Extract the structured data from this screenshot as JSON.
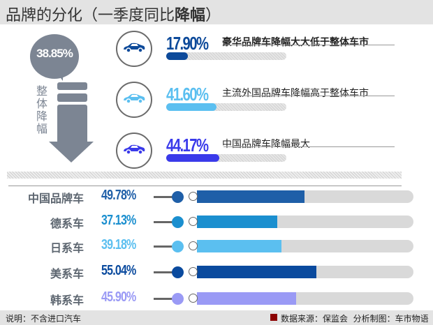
{
  "header": {
    "title": "品牌的分化（一季度同比",
    "title_bold": "降幅",
    "title_end": "）"
  },
  "overall": {
    "value": "38.85%",
    "label": "整体降幅"
  },
  "chart_data": [
    {
      "type": "bar",
      "orientation": "horizontal",
      "xlim": [
        0,
        100
      ],
      "categories": [
        "豪华品牌车降幅大大低于整体车市",
        "主流外国品牌车降幅高于整体车市",
        "中国品牌车降幅最大"
      ],
      "values": [
        17.9,
        41.6,
        44.17
      ],
      "labels": [
        "17.90%",
        "41.60%",
        "44.17%"
      ],
      "colors": [
        "#0d4a9a",
        "#5bbff0",
        "#3a3aea"
      ],
      "icon": "car-icon"
    },
    {
      "type": "bar",
      "orientation": "horizontal",
      "xlim": [
        0,
        100
      ],
      "categories": [
        "中国品牌车",
        "德系车",
        "日系车",
        "美系车",
        "韩系车"
      ],
      "values": [
        49.78,
        37.13,
        39.18,
        55.04,
        45.9
      ],
      "labels": [
        "49.78%",
        "37.13%",
        "39.18%",
        "55.04%",
        "45.90%"
      ],
      "colors": [
        "#1f5fa8",
        "#1b8fcf",
        "#5bbff0",
        "#0a4a9e",
        "#9a9af5"
      ]
    }
  ],
  "footer": {
    "note": "说明：不含进口汽车",
    "source": "数据来源：保监会  分析制图：车市物语",
    "source_color": "#8b0000"
  }
}
